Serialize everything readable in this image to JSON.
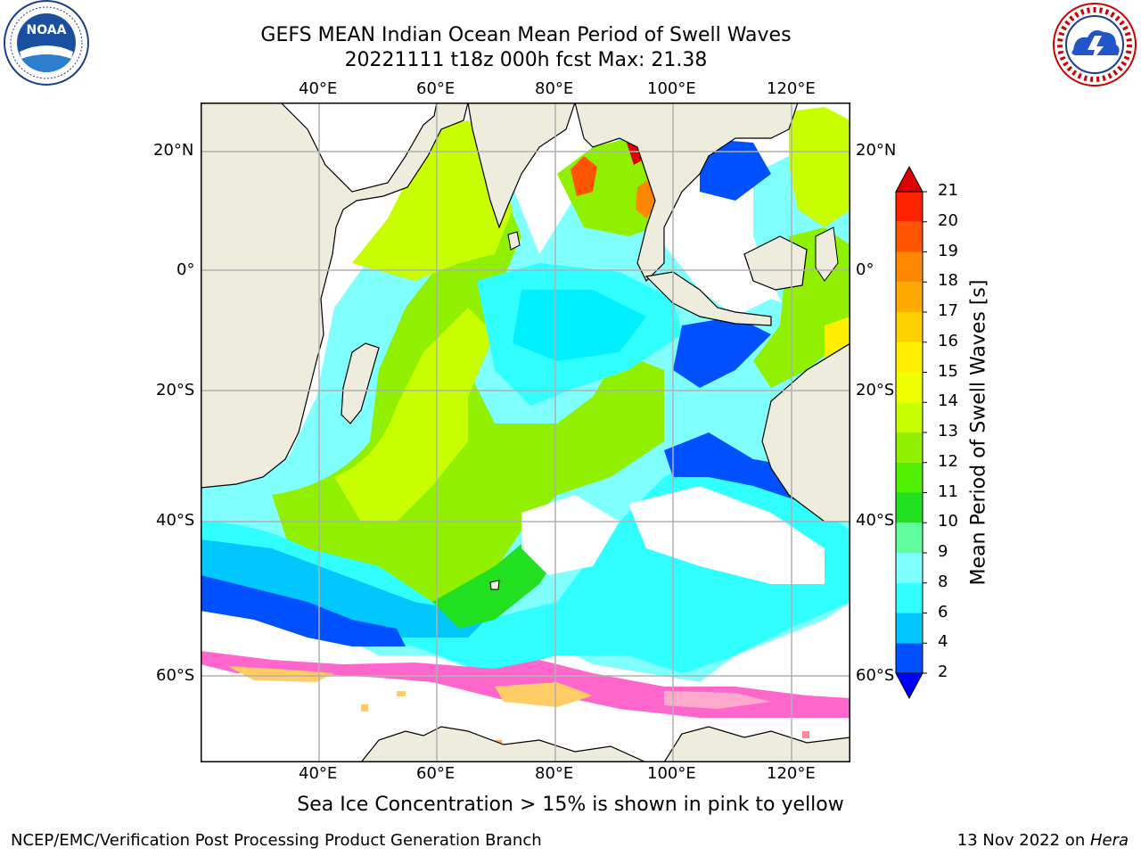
{
  "title": {
    "line1": "GEFS MEAN Indian Ocean Mean Period of Swell Waves",
    "line2": "20221111 t18z 000h fcst   Max: 21.38"
  },
  "logos": {
    "left": {
      "name": "NOAA",
      "ring_text": "NATIONAL OCEANIC AND ATMOSPHERIC ADMINISTRATION · U.S. DEPARTMENT OF COMMERCE"
    },
    "right": {
      "name": "NATIONAL WEATHER SERVICE"
    }
  },
  "map": {
    "lon_labels": [
      "40°E",
      "60°E",
      "80°E",
      "100°E",
      "120°E"
    ],
    "lat_labels_left": [
      "20°N",
      "0°",
      "20°S",
      "40°S",
      "60°S"
    ],
    "lat_labels_right": [
      "20°N",
      "0°",
      "20°S",
      "40°S",
      "60°S"
    ],
    "colors": {
      "land": "#eeecdc",
      "ice_pink": "#ff66cc",
      "ice_yellow": "#ffcc66",
      "grid": "#b0b0b0"
    }
  },
  "colorbar": {
    "label": "Mean Period of Swell Waves [s]",
    "ticks": [
      "2",
      "4",
      "6",
      "8",
      "9",
      "10",
      "11",
      "12",
      "13",
      "14",
      "15",
      "16",
      "17",
      "18",
      "19",
      "20",
      "21"
    ],
    "colors": [
      "#0050ff",
      "#00c8ff",
      "#30ffff",
      "#80ffff",
      "#60ff9c",
      "#20e020",
      "#50f000",
      "#90f000",
      "#c8ff00",
      "#f0ff00",
      "#ffee00",
      "#ffd000",
      "#ffaa00",
      "#ff8800",
      "#ff5500",
      "#ff2200"
    ],
    "under_color": "#0000ff",
    "over_color": "#dd0000"
  },
  "annotation": "Sea Ice Concentration > 15% is shown in pink to yellow",
  "footer": {
    "left": "NCEP/EMC/Verification Post Processing Product Generation Branch",
    "right_date": "13 Nov 2022 on ",
    "right_host": "Hera"
  }
}
